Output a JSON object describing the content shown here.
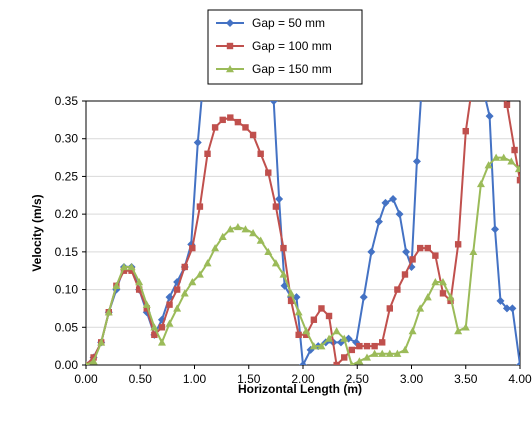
{
  "chart_data": {
    "type": "line",
    "title": "",
    "xlabel": "Horizontal Length (m)",
    "ylabel": "Velocity (m/s)",
    "xlim": [
      0,
      4
    ],
    "ylim": [
      0,
      0.35
    ],
    "x_ticks": [
      "0.00",
      "0.50",
      "1.00",
      "1.50",
      "2.00",
      "2.50",
      "3.00",
      "3.50",
      "4.00"
    ],
    "y_ticks": [
      "0.00",
      "0.05",
      "0.10",
      "0.15",
      "0.20",
      "0.25",
      "0.30",
      "0.35"
    ],
    "grid": "horizontal",
    "legend_position": "top-center",
    "series": [
      {
        "name": "Gap = 50 mm",
        "color": "#4472C4",
        "marker": "diamond",
        "points": [
          [
            0.0,
            0.0
          ],
          [
            0.07,
            0.01
          ],
          [
            0.14,
            0.03
          ],
          [
            0.21,
            0.07
          ],
          [
            0.28,
            0.1
          ],
          [
            0.35,
            0.13
          ],
          [
            0.42,
            0.13
          ],
          [
            0.49,
            0.1
          ],
          [
            0.56,
            0.07
          ],
          [
            0.63,
            0.04
          ],
          [
            0.7,
            0.06
          ],
          [
            0.77,
            0.09
          ],
          [
            0.84,
            0.11
          ],
          [
            0.91,
            0.13
          ],
          [
            0.97,
            0.16
          ],
          [
            1.03,
            0.295
          ],
          [
            1.07,
            0.36
          ],
          [
            1.7,
            0.36
          ],
          [
            1.73,
            0.35
          ],
          [
            1.78,
            0.22
          ],
          [
            1.83,
            0.105
          ],
          [
            1.89,
            0.09
          ],
          [
            1.94,
            0.09
          ],
          [
            2.0,
            0.0
          ],
          [
            2.07,
            0.02
          ],
          [
            2.14,
            0.025
          ],
          [
            2.21,
            0.03
          ],
          [
            2.28,
            0.03
          ],
          [
            2.35,
            0.03
          ],
          [
            2.42,
            0.035
          ],
          [
            2.49,
            0.03
          ],
          [
            2.56,
            0.09
          ],
          [
            2.63,
            0.15
          ],
          [
            2.7,
            0.19
          ],
          [
            2.76,
            0.215
          ],
          [
            2.83,
            0.22
          ],
          [
            2.89,
            0.2
          ],
          [
            2.95,
            0.15
          ],
          [
            3.0,
            0.13
          ],
          [
            3.05,
            0.27
          ],
          [
            3.09,
            0.36
          ],
          [
            3.67,
            0.36
          ],
          [
            3.72,
            0.33
          ],
          [
            3.77,
            0.18
          ],
          [
            3.82,
            0.085
          ],
          [
            3.88,
            0.075
          ],
          [
            3.93,
            0.075
          ],
          [
            4.0,
            0.0
          ]
        ]
      },
      {
        "name": "Gap = 100 mm",
        "color": "#C0504D",
        "marker": "square",
        "points": [
          [
            0.0,
            0.0
          ],
          [
            0.07,
            0.01
          ],
          [
            0.14,
            0.03
          ],
          [
            0.21,
            0.07
          ],
          [
            0.28,
            0.105
          ],
          [
            0.35,
            0.125
          ],
          [
            0.42,
            0.125
          ],
          [
            0.49,
            0.1
          ],
          [
            0.56,
            0.075
          ],
          [
            0.63,
            0.04
          ],
          [
            0.7,
            0.05
          ],
          [
            0.77,
            0.08
          ],
          [
            0.84,
            0.1
          ],
          [
            0.91,
            0.13
          ],
          [
            0.98,
            0.155
          ],
          [
            1.05,
            0.21
          ],
          [
            1.12,
            0.28
          ],
          [
            1.19,
            0.315
          ],
          [
            1.26,
            0.325
          ],
          [
            1.33,
            0.328
          ],
          [
            1.4,
            0.322
          ],
          [
            1.47,
            0.315
          ],
          [
            1.54,
            0.305
          ],
          [
            1.61,
            0.28
          ],
          [
            1.68,
            0.255
          ],
          [
            1.75,
            0.21
          ],
          [
            1.82,
            0.155
          ],
          [
            1.89,
            0.085
          ],
          [
            1.96,
            0.04
          ],
          [
            2.03,
            0.04
          ],
          [
            2.1,
            0.06
          ],
          [
            2.17,
            0.075
          ],
          [
            2.24,
            0.065
          ],
          [
            2.31,
            0.0
          ],
          [
            2.38,
            0.01
          ],
          [
            2.45,
            0.02
          ],
          [
            2.52,
            0.025
          ],
          [
            2.59,
            0.025
          ],
          [
            2.66,
            0.025
          ],
          [
            2.73,
            0.03
          ],
          [
            2.8,
            0.075
          ],
          [
            2.87,
            0.1
          ],
          [
            2.94,
            0.12
          ],
          [
            3.01,
            0.14
          ],
          [
            3.08,
            0.155
          ],
          [
            3.15,
            0.155
          ],
          [
            3.22,
            0.145
          ],
          [
            3.29,
            0.095
          ],
          [
            3.36,
            0.085
          ],
          [
            3.43,
            0.16
          ],
          [
            3.5,
            0.31
          ],
          [
            3.55,
            0.36
          ],
          [
            3.84,
            0.36
          ],
          [
            3.88,
            0.345
          ],
          [
            3.95,
            0.285
          ],
          [
            4.0,
            0.245
          ]
        ]
      },
      {
        "name": "Gap = 150 mm",
        "color": "#9BBB59",
        "marker": "triangle",
        "points": [
          [
            0.0,
            0.0
          ],
          [
            0.07,
            0.005
          ],
          [
            0.14,
            0.03
          ],
          [
            0.21,
            0.07
          ],
          [
            0.28,
            0.105
          ],
          [
            0.35,
            0.13
          ],
          [
            0.42,
            0.13
          ],
          [
            0.49,
            0.11
          ],
          [
            0.56,
            0.08
          ],
          [
            0.63,
            0.05
          ],
          [
            0.7,
            0.03
          ],
          [
            0.77,
            0.055
          ],
          [
            0.84,
            0.075
          ],
          [
            0.91,
            0.095
          ],
          [
            0.98,
            0.11
          ],
          [
            1.05,
            0.12
          ],
          [
            1.12,
            0.135
          ],
          [
            1.19,
            0.155
          ],
          [
            1.26,
            0.17
          ],
          [
            1.33,
            0.18
          ],
          [
            1.4,
            0.183
          ],
          [
            1.47,
            0.18
          ],
          [
            1.54,
            0.175
          ],
          [
            1.61,
            0.165
          ],
          [
            1.68,
            0.15
          ],
          [
            1.75,
            0.135
          ],
          [
            1.82,
            0.12
          ],
          [
            1.89,
            0.095
          ],
          [
            1.96,
            0.07
          ],
          [
            2.03,
            0.045
          ],
          [
            2.1,
            0.025
          ],
          [
            2.17,
            0.025
          ],
          [
            2.24,
            0.035
          ],
          [
            2.31,
            0.045
          ],
          [
            2.38,
            0.035
          ],
          [
            2.45,
            0.0
          ],
          [
            2.52,
            0.005
          ],
          [
            2.59,
            0.01
          ],
          [
            2.66,
            0.015
          ],
          [
            2.73,
            0.015
          ],
          [
            2.8,
            0.015
          ],
          [
            2.87,
            0.015
          ],
          [
            2.94,
            0.02
          ],
          [
            3.01,
            0.045
          ],
          [
            3.08,
            0.075
          ],
          [
            3.15,
            0.09
          ],
          [
            3.22,
            0.11
          ],
          [
            3.29,
            0.11
          ],
          [
            3.36,
            0.09
          ],
          [
            3.43,
            0.045
          ],
          [
            3.5,
            0.05
          ],
          [
            3.57,
            0.15
          ],
          [
            3.64,
            0.24
          ],
          [
            3.71,
            0.265
          ],
          [
            3.78,
            0.275
          ],
          [
            3.85,
            0.275
          ],
          [
            3.92,
            0.27
          ],
          [
            3.99,
            0.26
          ]
        ]
      }
    ]
  }
}
